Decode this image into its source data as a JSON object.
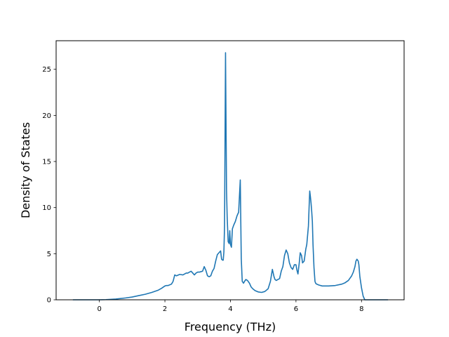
{
  "chart_data": {
    "type": "line",
    "title": "",
    "xlabel": "Frequency (THz)",
    "ylabel": "Density of States",
    "xlim": [
      -1.32,
      9.3
    ],
    "ylim": [
      0,
      28.1
    ],
    "xticks": [
      0,
      2,
      4,
      6,
      8
    ],
    "yticks": [
      0,
      5,
      10,
      15,
      20,
      25
    ],
    "grid": false,
    "line_color": "#1f77b4",
    "series": [
      {
        "x": [
          -0.8,
          -0.5,
          -0.2,
          0.0,
          0.2,
          0.5,
          0.8,
          1.0,
          1.2,
          1.4,
          1.6,
          1.8,
          1.9,
          2.0,
          2.05,
          2.1,
          2.2,
          2.25,
          2.3,
          2.35,
          2.45,
          2.55,
          2.65,
          2.7,
          2.75,
          2.8,
          2.9,
          2.95,
          3.0,
          3.05,
          3.1,
          3.15,
          3.2,
          3.25,
          3.3,
          3.35,
          3.4,
          3.45,
          3.5,
          3.55,
          3.6,
          3.65,
          3.7,
          3.73,
          3.76,
          3.78,
          3.8,
          3.82,
          3.85,
          3.88,
          3.9,
          3.93,
          3.96,
          3.98,
          4.0,
          4.03,
          4.06,
          4.1,
          4.15,
          4.2,
          4.25,
          4.3,
          4.33,
          4.36,
          4.38,
          4.4,
          4.43,
          4.47,
          4.52,
          4.58,
          4.63,
          4.68,
          4.75,
          4.85,
          4.95,
          5.05,
          5.15,
          5.22,
          5.28,
          5.33,
          5.36,
          5.4,
          5.45,
          5.5,
          5.55,
          5.6,
          5.65,
          5.7,
          5.75,
          5.8,
          5.85,
          5.9,
          5.95,
          6.0,
          6.03,
          6.06,
          6.1,
          6.13,
          6.17,
          6.2,
          6.25,
          6.3,
          6.33,
          6.36,
          6.38,
          6.4,
          6.42,
          6.44,
          6.46,
          6.48,
          6.5,
          6.52,
          6.55,
          6.58,
          6.6,
          6.63,
          6.7,
          6.8,
          6.9,
          7.0,
          7.2,
          7.4,
          7.5,
          7.6,
          7.7,
          7.75,
          7.8,
          7.83,
          7.86,
          7.9,
          7.92,
          7.95,
          8.0,
          8.05,
          8.1,
          8.3,
          8.6,
          8.8
        ],
        "y": [
          0,
          0,
          0,
          0,
          0.02,
          0.08,
          0.2,
          0.3,
          0.45,
          0.6,
          0.8,
          1.05,
          1.25,
          1.5,
          1.55,
          1.55,
          1.7,
          2.0,
          2.7,
          2.6,
          2.75,
          2.7,
          2.9,
          2.9,
          3.0,
          3.1,
          2.7,
          2.9,
          3.0,
          3.0,
          3.05,
          3.1,
          3.6,
          3.2,
          2.6,
          2.5,
          2.6,
          3.1,
          3.4,
          4.2,
          4.9,
          5.1,
          5.3,
          4.4,
          4.3,
          4.3,
          5.2,
          8.0,
          26.8,
          12.0,
          9.0,
          6.3,
          6.1,
          7.5,
          6.0,
          5.7,
          7.7,
          8.1,
          8.5,
          9.1,
          9.5,
          13.0,
          4.5,
          2.0,
          1.9,
          1.8,
          2.0,
          2.2,
          2.1,
          1.8,
          1.4,
          1.2,
          1.0,
          0.85,
          0.8,
          0.9,
          1.2,
          2.0,
          3.3,
          2.5,
          2.2,
          2.1,
          2.2,
          2.3,
          3.1,
          3.6,
          4.8,
          5.4,
          5.0,
          4.0,
          3.5,
          3.3,
          3.8,
          3.8,
          3.2,
          2.8,
          4.0,
          5.1,
          4.8,
          4.0,
          4.2,
          5.5,
          6.0,
          7.2,
          8.0,
          10.0,
          11.8,
          11.2,
          10.5,
          9.6,
          8.5,
          6.0,
          3.5,
          2.0,
          1.8,
          1.7,
          1.6,
          1.5,
          1.5,
          1.5,
          1.55,
          1.7,
          1.85,
          2.1,
          2.6,
          3.0,
          3.6,
          4.2,
          4.4,
          4.2,
          3.8,
          2.5,
          1.3,
          0.4,
          0,
          0,
          0,
          0
        ]
      }
    ]
  }
}
